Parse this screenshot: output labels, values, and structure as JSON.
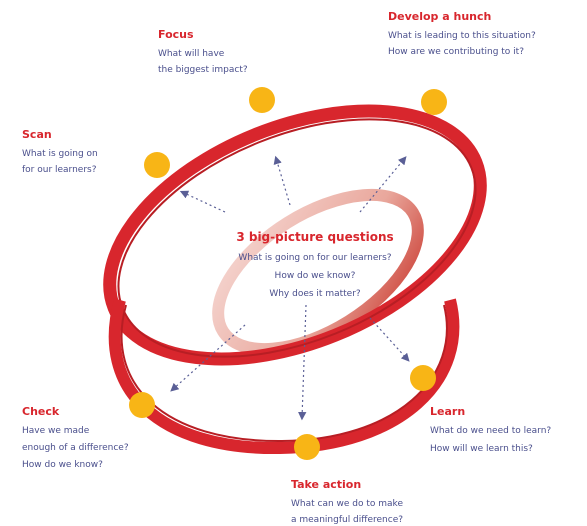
{
  "center": {
    "title": "3 big-picture questions",
    "lines": [
      "What is going on for our learners?",
      "How do we know?",
      "Why does it matter?"
    ]
  },
  "nodes": [
    {
      "title": "Focus",
      "lines": [
        "What will have",
        "the biggest impact?"
      ]
    },
    {
      "title": "Develop a hunch",
      "lines": [
        "What is leading to this situation?",
        "How are we contributing to it?"
      ]
    },
    {
      "title": "Scan",
      "lines": [
        "What is going on",
        "for our learners?"
      ]
    },
    {
      "title": "Check",
      "lines": [
        "Have we made",
        "enough of a difference?",
        "How do we know?"
      ]
    },
    {
      "title": "Learn",
      "lines": [
        "What do we need to learn?",
        "How will we learn this?"
      ]
    },
    {
      "title": "Take action",
      "lines": [
        "What can we do to make",
        "a meaningful difference?"
      ]
    }
  ]
}
